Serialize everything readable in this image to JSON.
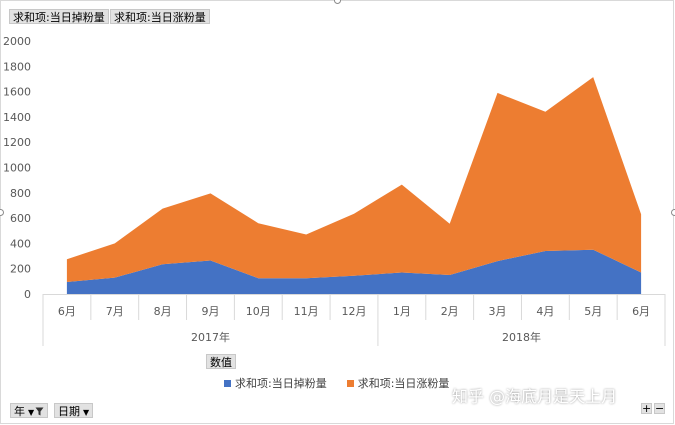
{
  "header_buttons": [
    "求和项:当日掉粉量",
    "求和项:当日涨粉量"
  ],
  "values_button": "数值",
  "filter_buttons": [
    {
      "label": "年",
      "icons": [
        "chevron-down-icon",
        "filter-icon"
      ]
    },
    {
      "label": "日期",
      "icons": [
        "chevron-down-icon"
      ]
    }
  ],
  "zoom": {
    "plus": "+",
    "minus": "−"
  },
  "watermark": "知乎 @海底月是天上月",
  "chart_data": {
    "type": "area",
    "stacked": true,
    "ylim": [
      0,
      2000
    ],
    "y_ticks": [
      0,
      200,
      400,
      600,
      800,
      1000,
      1200,
      1400,
      1600,
      1800,
      2000
    ],
    "categories": [
      "6月",
      "7月",
      "8月",
      "9月",
      "10月",
      "11月",
      "12月",
      "1月",
      "2月",
      "3月",
      "4月",
      "5月",
      "6月"
    ],
    "groups": [
      {
        "label": "2017年",
        "count": 7
      },
      {
        "label": "2018年",
        "count": 6
      }
    ],
    "series": [
      {
        "name": "求和项:当日掉粉量",
        "color": "#4472c4",
        "values": [
          95,
          130,
          235,
          265,
          125,
          125,
          145,
          170,
          150,
          260,
          340,
          350,
          170
        ]
      },
      {
        "name": "求和项:当日涨粉量",
        "color": "#ed7d31",
        "values": [
          180,
          270,
          440,
          530,
          435,
          345,
          490,
          695,
          405,
          1330,
          1100,
          1365,
          460
        ]
      }
    ],
    "legend_position": "bottom",
    "grid": false
  }
}
